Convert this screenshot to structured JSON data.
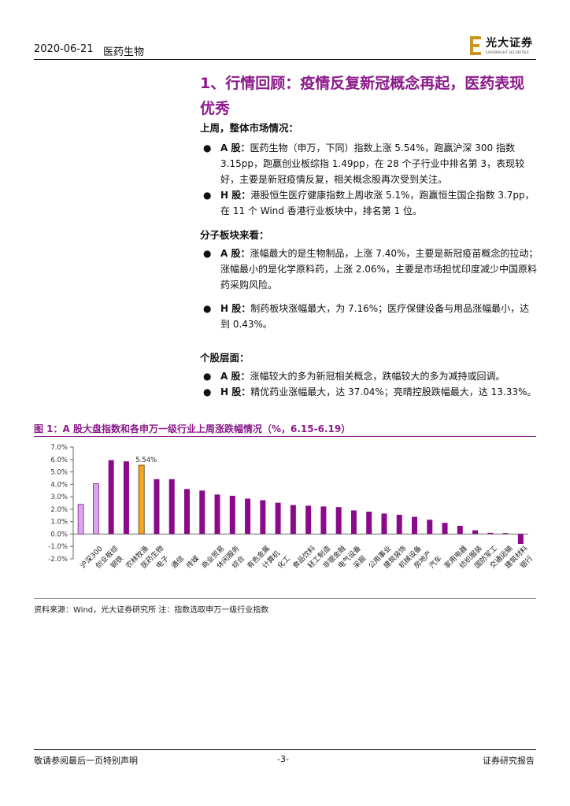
{
  "header": {
    "date": "2020-06-21",
    "sector": "医药生物",
    "logo_name": "光大证券",
    "logo_en": "EVERBRIGHT SECURITIES"
  },
  "section": {
    "title": "1、行情回顾：疫情反复新冠概念再起，医药表现优秀",
    "market_heading": "上周，整体市场情况：",
    "market_bullets": [
      {
        "label": "A 股：",
        "text": "医药生物（申万，下同）指数上涨 5.54%，跑赢沪深 300 指数 3.15pp，跑赢创业板综指 1.49pp，在 28 个子行业中排名第 3，表现较好，主要是新冠疫情反复，相关概念股再次受到关注。"
      },
      {
        "label": "H 股：",
        "text": "港股恒生医疗健康指数上周收涨 5.1%，跑赢恒生国企指数 3.7pp，在 11 个 Wind 香港行业板块中，排名第 1 位。"
      }
    ],
    "sub_heading": "分子板块来看：",
    "sub_bullets": [
      {
        "label": "A 股：",
        "text": "涨幅最大的是生物制品，上涨 7.40%，主要是新冠疫苗概念的拉动；涨幅最小的是化学原料药，上涨 2.06%，主要是市场担忧印度减少中国原料药采购风险。"
      },
      {
        "label": "H 股：",
        "text": "制药板块涨幅最大，为 7.16%；医疗保健设备与用品涨幅最小，达到 0.43%。"
      }
    ],
    "stock_heading": "个股层面：",
    "stock_bullets": [
      {
        "label": "A 股：",
        "text": "涨幅较大的多为新冠相关概念，跌幅较大的多为减持或回调。"
      },
      {
        "label": "H 股：",
        "text": "精优药业涨幅最大，达 37.04%；亮晴控股跌幅最大，达 13.33%。"
      }
    ]
  },
  "figure": {
    "title": "图 1：A 股大盘指数和各申万一级行业上周涨跌幅情况（%，6.15-6.19）",
    "source": "资料来源：Wind，光大证券研究所   注：指数选取申万一级行业指数"
  },
  "chart_data": {
    "type": "bar",
    "title": "",
    "xlabel": "",
    "ylabel": "",
    "ylim": [
      -2.0,
      7.0
    ],
    "yticks": [
      "7.0%",
      "6.0%",
      "5.0%",
      "4.0%",
      "3.0%",
      "2.0%",
      "1.0%",
      "0.0%",
      "-1.0%",
      "-2.0%"
    ],
    "categories": [
      "沪深300",
      "创业板综",
      "钢铁",
      "农林牧渔",
      "医药生物",
      "电子",
      "通信",
      "传媒",
      "商业贸易",
      "休闲服务",
      "综合",
      "有色金属",
      "计算机",
      "化工",
      "食品饮料",
      "轻工制造",
      "非银金融",
      "电气设备",
      "采掘",
      "公用事业",
      "建筑装饰",
      "机械设备",
      "房地产",
      "汽车",
      "家用电器",
      "纺织服装",
      "国防军工",
      "交通运输",
      "建筑材料",
      "银行"
    ],
    "values": [
      2.39,
      4.05,
      5.95,
      5.85,
      5.54,
      4.42,
      4.42,
      3.62,
      3.5,
      3.18,
      3.08,
      2.85,
      2.72,
      2.52,
      2.33,
      2.28,
      2.22,
      2.17,
      1.9,
      1.8,
      1.65,
      1.55,
      1.38,
      1.15,
      0.9,
      0.66,
      0.3,
      0.1,
      0.08,
      -0.8
    ],
    "highlight_index": 4,
    "value_label": "5.54%",
    "colors": {
      "index": "#d8a6ec",
      "index_border": "#8b1a8b",
      "industry": "#8b0a8b",
      "highlight": "#f5a623",
      "highlight_border": "#5a3a00"
    },
    "grid": false,
    "legend": "none"
  },
  "footer": {
    "left": "敬请参阅最后一页特别声明",
    "center": "-3-",
    "right": "证券研究报告"
  }
}
